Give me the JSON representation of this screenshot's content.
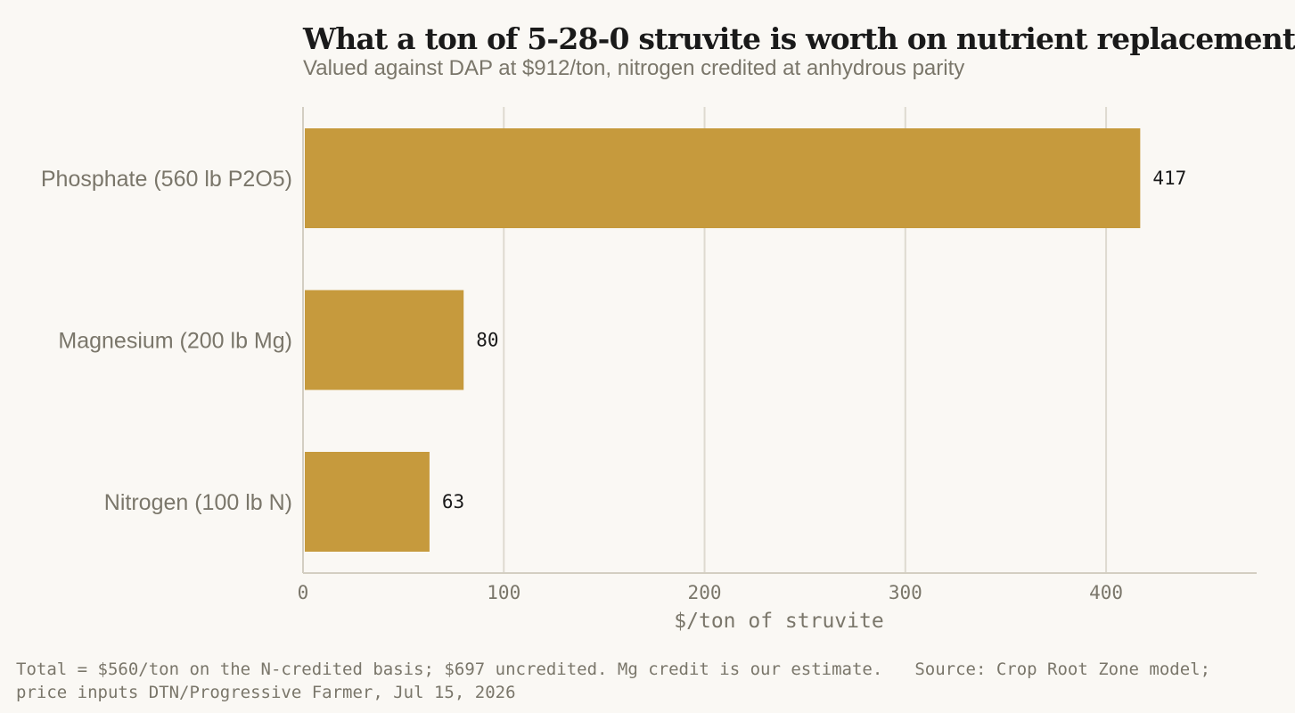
{
  "chart_data": {
    "type": "bar",
    "orientation": "horizontal",
    "title": "What a ton of 5-28-0 struvite is worth on nutrient replacement",
    "subtitle": "Valued against DAP at $912/ton, nitrogen credited at anhydrous parity",
    "categories": [
      "Phosphate (560 lb P2O5)",
      "Magnesium (200 lb Mg)",
      "Nitrogen (100 lb N)"
    ],
    "values": [
      417,
      80,
      63
    ],
    "xlabel": "$/ton of struvite",
    "xlim": [
      0,
      475
    ],
    "xticks": [
      0,
      100,
      200,
      300,
      400
    ],
    "grid": true,
    "bar_color": "#c69a3d"
  },
  "footer": {
    "note": "Total = $560/ton on the N-credited basis; $697 uncredited. Mg credit is our estimate.",
    "source": "Source: Crop Root Zone model; price inputs DTN/Progressive Farmer, Jul 15, 2026"
  }
}
